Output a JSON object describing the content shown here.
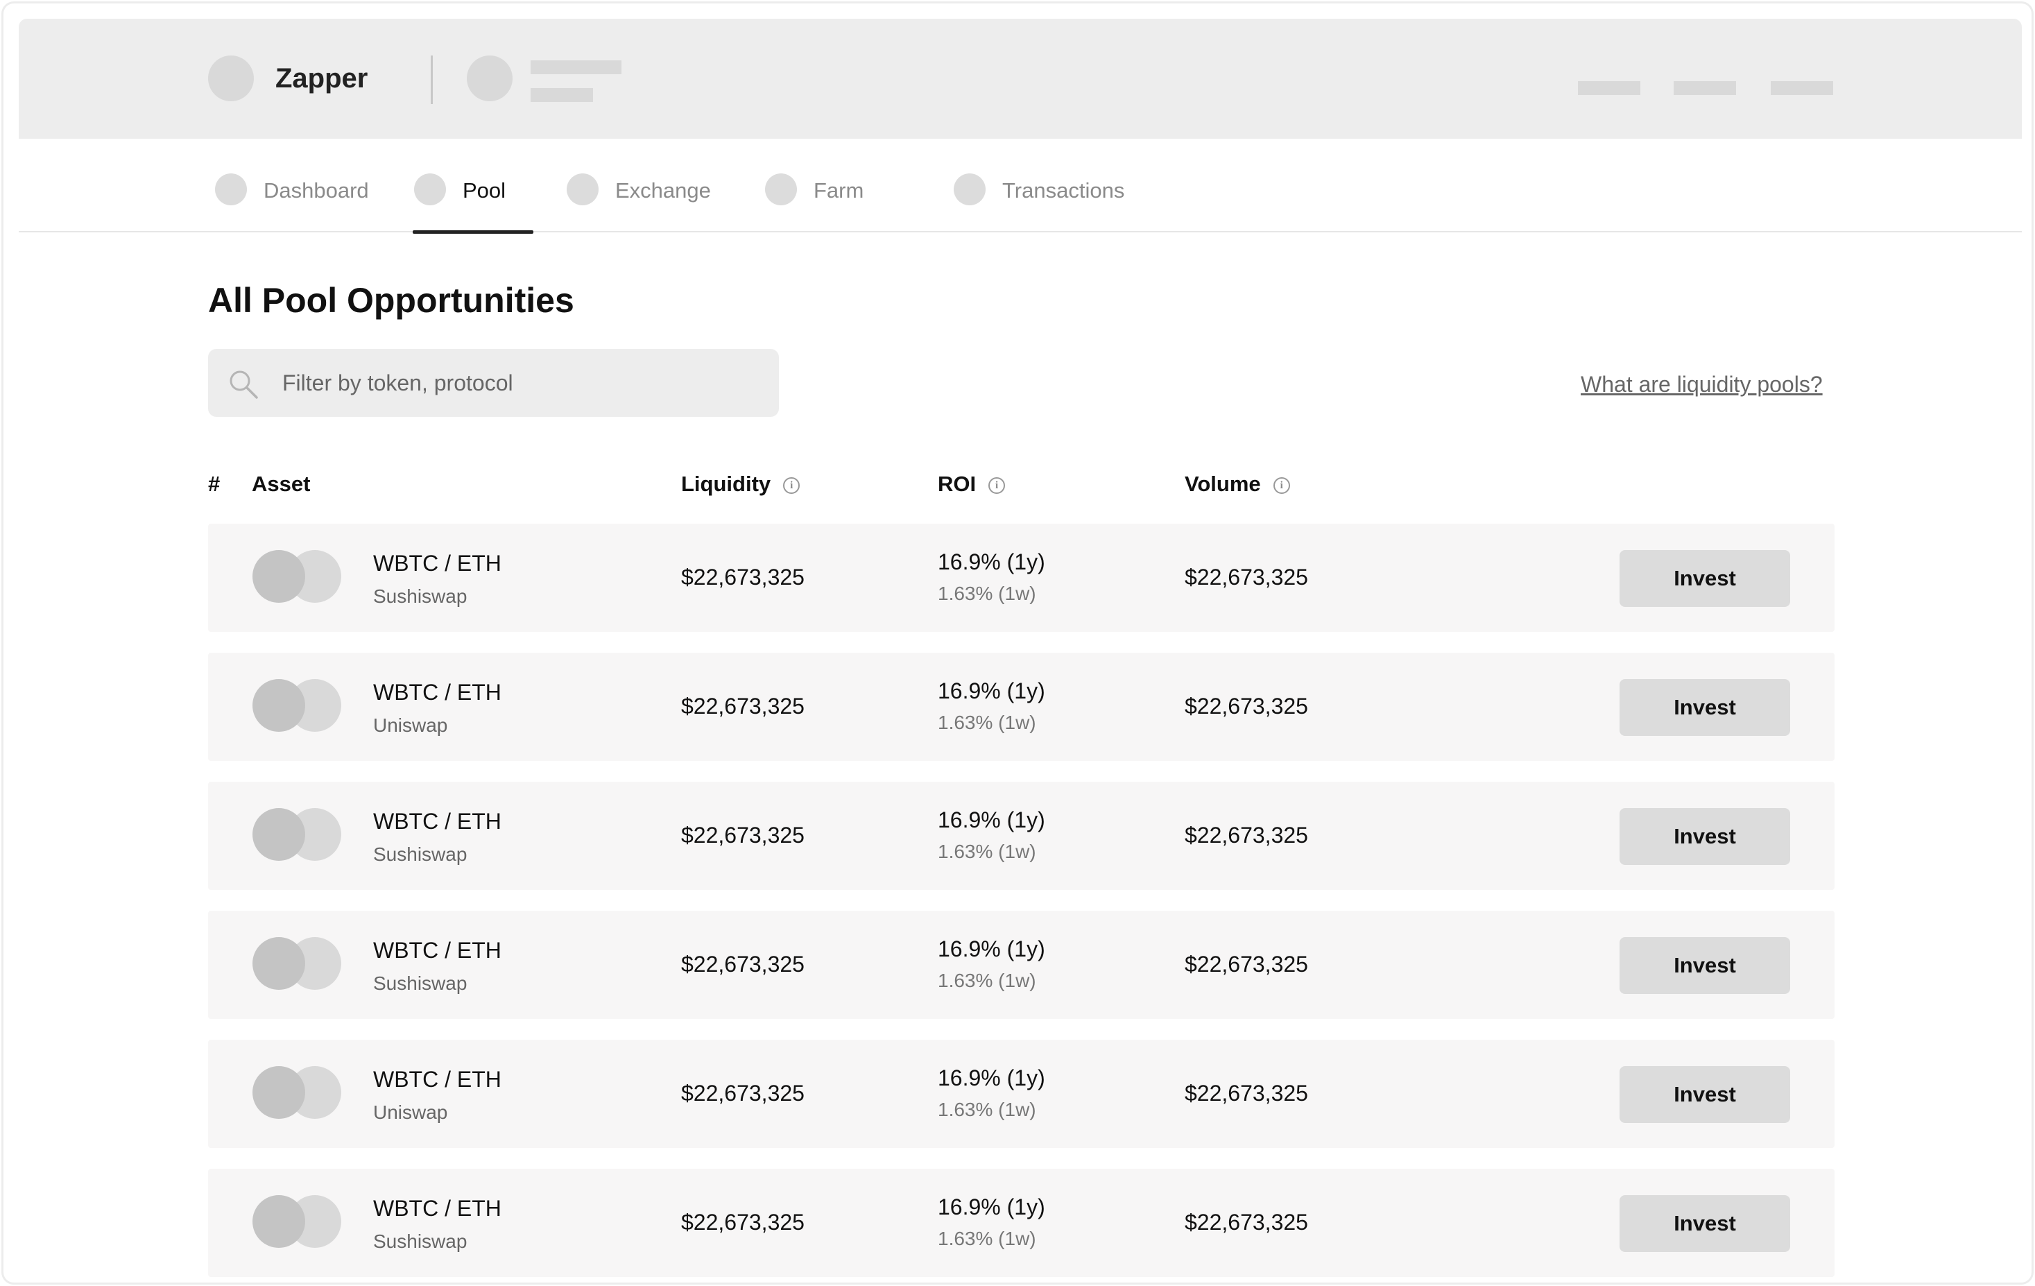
{
  "header": {
    "app_name": "Zapper"
  },
  "nav": {
    "tabs": [
      {
        "label": "Dashboard",
        "active": false
      },
      {
        "label": "Pool",
        "active": true
      },
      {
        "label": "Exchange",
        "active": false
      },
      {
        "label": "Farm",
        "active": false
      },
      {
        "label": "Transactions",
        "active": false
      }
    ]
  },
  "main": {
    "title": "All Pool Opportunities",
    "search": {
      "placeholder": "Filter by token, protocol",
      "value": ""
    },
    "help_link": "What are liquidity pools?"
  },
  "table": {
    "columns": {
      "index": "#",
      "asset": "Asset",
      "liquidity": "Liquidity",
      "roi": "ROI",
      "volume": "Volume",
      "info_glyph": "i"
    },
    "rows": [
      {
        "pair": "WBTC / ETH",
        "protocol": "Sushiswap",
        "liquidity": "$22,673,325",
        "roi_year": "16.9% (1y)",
        "roi_week": "1.63% (1w)",
        "volume": "$22,673,325",
        "action": "Invest"
      },
      {
        "pair": "WBTC / ETH",
        "protocol": "Uniswap",
        "liquidity": "$22,673,325",
        "roi_year": "16.9% (1y)",
        "roi_week": "1.63% (1w)",
        "volume": "$22,673,325",
        "action": "Invest"
      },
      {
        "pair": "WBTC / ETH",
        "protocol": "Sushiswap",
        "liquidity": "$22,673,325",
        "roi_year": "16.9% (1y)",
        "roi_week": "1.63% (1w)",
        "volume": "$22,673,325",
        "action": "Invest"
      },
      {
        "pair": "WBTC / ETH",
        "protocol": "Sushiswap",
        "liquidity": "$22,673,325",
        "roi_year": "16.9% (1y)",
        "roi_week": "1.63% (1w)",
        "volume": "$22,673,325",
        "action": "Invest"
      },
      {
        "pair": "WBTC / ETH",
        "protocol": "Uniswap",
        "liquidity": "$22,673,325",
        "roi_year": "16.9% (1y)",
        "roi_week": "1.63% (1w)",
        "volume": "$22,673,325",
        "action": "Invest"
      },
      {
        "pair": "WBTC / ETH",
        "protocol": "Sushiswap",
        "liquidity": "$22,673,325",
        "roi_year": "16.9% (1y)",
        "roi_week": "1.63% (1w)",
        "volume": "$22,673,325",
        "action": "Invest"
      }
    ]
  },
  "icons": {
    "logo": "logo-placeholder-icon",
    "account_avatar": "avatar-placeholder-icon",
    "search": "search-icon",
    "info": "info-icon",
    "token_a": "token-icon",
    "token_b": "token-icon"
  },
  "colors": {
    "header_bg": "#ededed",
    "row_bg": "#f7f6f6",
    "button_bg": "#dcdcdc",
    "placeholder": "#d9d9d9",
    "active_tab_underline": "#222222"
  }
}
